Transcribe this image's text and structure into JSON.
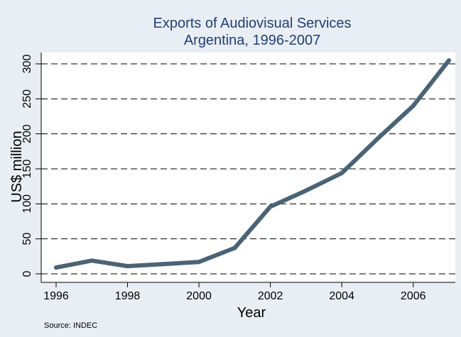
{
  "chart_data": {
    "type": "line",
    "title": "Exports of Audiovisual Services",
    "subtitle": "Argentina, 1996-2007",
    "xlabel": "Year",
    "ylabel": "US$ million",
    "source_note": "Source: INDEC",
    "x": [
      1996,
      1997,
      1998,
      1999,
      2000,
      2001,
      2002,
      2003,
      2004,
      2005,
      2006,
      2007
    ],
    "series": [
      {
        "name": "",
        "values": [
          9,
          19,
          11,
          14,
          17,
          37,
          96,
          119,
          144,
          193,
          240,
          305
        ],
        "color": "#4a6476"
      }
    ],
    "xlim": [
      1996,
      2007
    ],
    "ylim": [
      0,
      310
    ],
    "x_ticks": [
      1996,
      1998,
      2000,
      2002,
      2004,
      2006
    ],
    "y_ticks": [
      0,
      50,
      100,
      150,
      200,
      250,
      300
    ],
    "grid": "horizontal-dashed",
    "colors": {
      "outer_background": "#e9eef4",
      "plot_background": "#ffffff",
      "title_color": "#1f3f73",
      "line_color": "#4a6476",
      "grid_color": "#000000"
    }
  }
}
